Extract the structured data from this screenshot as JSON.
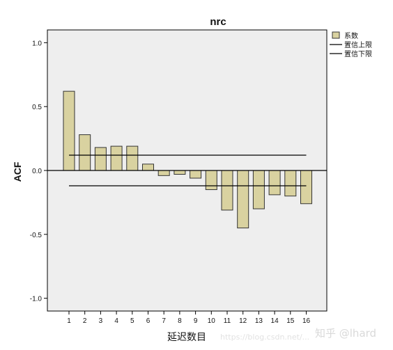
{
  "chart_data": {
    "type": "bar",
    "title": "nrc",
    "ylabel": "ACF",
    "xlabel": "延迟数目",
    "categories": [
      "1",
      "2",
      "3",
      "4",
      "5",
      "6",
      "7",
      "8",
      "9",
      "10",
      "11",
      "12",
      "13",
      "14",
      "15",
      "16"
    ],
    "series": [
      {
        "name": "系数",
        "values": [
          0.62,
          0.28,
          0.18,
          0.19,
          0.19,
          0.05,
          -0.04,
          -0.03,
          -0.06,
          -0.15,
          -0.31,
          -0.45,
          -0.3,
          -0.19,
          -0.2,
          -0.26
        ]
      }
    ],
    "confidence_upper": {
      "name": "置信上限",
      "value": 0.12
    },
    "confidence_lower": {
      "name": "置信下限",
      "value": -0.12
    },
    "ylim": [
      -1.1,
      1.1
    ],
    "yticks": [
      1.0,
      0.5,
      0.0,
      -0.5,
      -1.0
    ],
    "ytick_labels": [
      "1.0",
      "0.5",
      "0.0",
      "-0.5",
      "-1.0"
    ],
    "grid": false,
    "legend_position": "top-right",
    "colors": {
      "bar_fill": "#d9d2a0",
      "bar_stroke": "#333333",
      "plot_background": "#eeeeee",
      "line": "#000000"
    }
  },
  "watermark": {
    "brand": "知乎 @lhard",
    "url": "https://blog.csdn.net/..."
  }
}
